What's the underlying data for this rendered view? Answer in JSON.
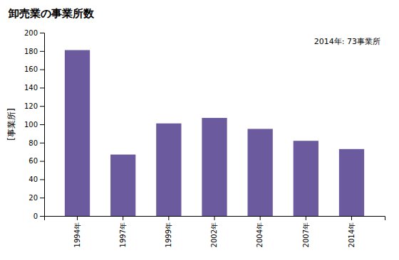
{
  "chart_data": {
    "type": "bar",
    "title": "卸売業の事業所数",
    "ylabel": "[事業所]",
    "annotation": "2014年: 73事業所",
    "categories": [
      "1994年",
      "1997年",
      "1999年",
      "2002年",
      "2004年",
      "2007年",
      "2014年"
    ],
    "values": [
      181,
      67,
      101,
      107,
      95,
      82,
      73
    ],
    "color": "#6B5B9E",
    "ylim": [
      0,
      200
    ],
    "yticks": [
      0,
      20,
      40,
      60,
      80,
      100,
      120,
      140,
      160,
      180,
      200
    ],
    "grid": false
  }
}
